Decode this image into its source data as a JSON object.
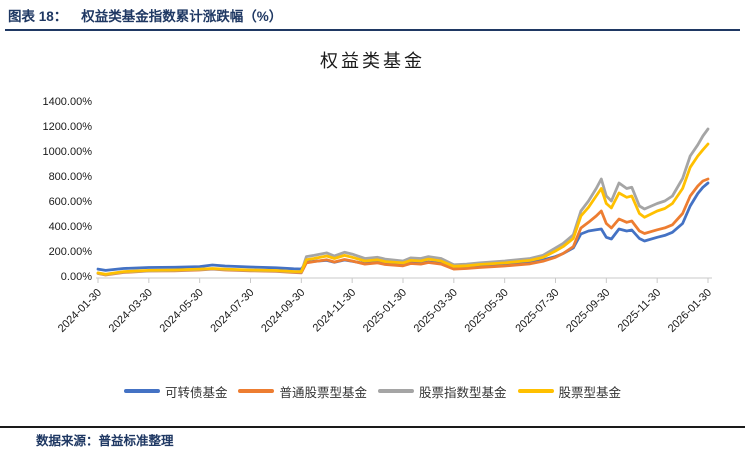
{
  "header": {
    "label": "图表 18：",
    "title": "权益类基金指数累计涨跌幅（%）"
  },
  "footer": {
    "source_label": "数据来源：",
    "source_text": "普益标准整理"
  },
  "colors": {
    "header_navy": "#1f3863",
    "axis_line": "#c9c9c9",
    "tick_text": "#1a1a1a"
  },
  "chart_data": {
    "type": "line",
    "title": "权益类基金",
    "xlabel": "",
    "ylabel": "",
    "grid": false,
    "legend_position": "bottom",
    "ylim": [
      0,
      1400
    ],
    "y_tick_labels": [
      "0.00%",
      "200.00%",
      "400.00%",
      "600.00%",
      "800.00%",
      "1000.00%",
      "1200.00%",
      "1400.00%"
    ],
    "x_tick_labels": [
      "2024-01-30",
      "2024-03-30",
      "2024-05-30",
      "2024-07-30",
      "2024-09-30",
      "2024-11-30",
      "2025-01-30",
      "2025-03-30",
      "2025-05-30",
      "2025-07-30",
      "2025-09-30",
      "2025-11-30",
      "2026-01-30"
    ],
    "x_unit": "months_since_2024-01-30",
    "x_range": [
      0,
      24
    ],
    "x": [
      0,
      0.3,
      1,
      2,
      3,
      4,
      4.5,
      5,
      6,
      7,
      7.7,
      8,
      8.2,
      8.5,
      9,
      9.3,
      9.7,
      10,
      10.5,
      11,
      11.3,
      12,
      12.3,
      12.7,
      13,
      13.5,
      14,
      14.5,
      15,
      16,
      17,
      17.5,
      18,
      18.3,
      18.7,
      19,
      19.3,
      19.6,
      19.8,
      20,
      20.2,
      20.5,
      20.8,
      21,
      21.3,
      21.5,
      22,
      22.3,
      22.6,
      23,
      23.3,
      23.6,
      23.8,
      24
    ],
    "series": [
      {
        "name": "可转债基金",
        "color": "#4472C4",
        "values": [
          55,
          45,
          60,
          68,
          70,
          75,
          88,
          80,
          72,
          66,
          58,
          56,
          110,
          118,
          125,
          110,
          128,
          118,
          100,
          112,
          100,
          95,
          108,
          104,
          112,
          104,
          70,
          76,
          85,
          95,
          110,
          128,
          155,
          180,
          225,
          336,
          360,
          370,
          376,
          310,
          296,
          376,
          360,
          368,
          300,
          280,
          310,
          325,
          350,
          420,
          560,
          660,
          710,
          744
        ]
      },
      {
        "name": "普通股票型基金",
        "color": "#ED7D31",
        "values": [
          20,
          8,
          28,
          40,
          42,
          48,
          55,
          48,
          42,
          38,
          28,
          26,
          105,
          115,
          130,
          112,
          132,
          120,
          95,
          105,
          92,
          82,
          100,
          95,
          108,
          95,
          55,
          60,
          68,
          80,
          98,
          118,
          150,
          180,
          235,
          384,
          430,
          480,
          520,
          420,
          384,
          456,
          430,
          440,
          360,
          340,
          370,
          385,
          410,
          500,
          640,
          720,
          760,
          776
        ]
      },
      {
        "name": "股票指数型基金",
        "color": "#A5A5A5",
        "values": [
          22,
          11,
          32,
          42,
          45,
          52,
          57,
          52,
          45,
          41,
          33,
          32,
          155,
          165,
          185,
          160,
          190,
          175,
          140,
          150,
          135,
          120,
          145,
          140,
          155,
          140,
          90,
          95,
          105,
          120,
          140,
          165,
          225,
          260,
          330,
          520,
          600,
          700,
          776,
          640,
          600,
          744,
          700,
          710,
          560,
          536,
          580,
          600,
          640,
          780,
          960,
          1050,
          1120,
          1176
        ]
      },
      {
        "name": "股票型基金",
        "color": "#FFC000",
        "values": [
          25,
          14,
          35,
          45,
          48,
          55,
          60,
          55,
          48,
          44,
          36,
          35,
          130,
          140,
          160,
          140,
          165,
          150,
          120,
          130,
          115,
          105,
          125,
          120,
          135,
          120,
          78,
          82,
          92,
          105,
          125,
          148,
          200,
          235,
          300,
          480,
          550,
          640,
          700,
          580,
          545,
          664,
          630,
          640,
          500,
          470,
          520,
          540,
          580,
          700,
          870,
          960,
          1010,
          1056
        ]
      }
    ]
  }
}
